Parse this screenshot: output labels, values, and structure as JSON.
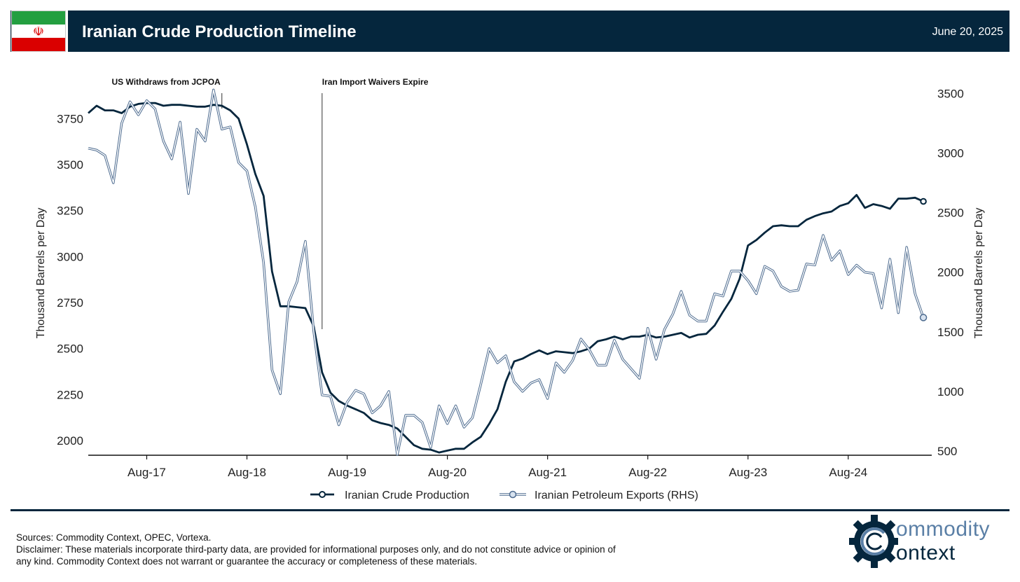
{
  "header": {
    "title": "Iranian Crude Production Timeline",
    "date": "June 20, 2025"
  },
  "flag": {
    "emblem": "☫",
    "icon": "iran-flag-icon"
  },
  "footer": {
    "sources": "Sources: Commodity Context, OPEC, Vortexa.",
    "disclaimer": "Disclaimer: These materials incorporate third-party data, are provided for informational purposes only, and do not constitute advice or opinion of any kind. Commodity Context does not warrant or guarantee the accuracy or completeness of these materials."
  },
  "logo": {
    "line1": "ommodity",
    "line2": "ontext",
    "icon": "gear-icon"
  },
  "colors": {
    "navy": "#05263d",
    "light_blue": "#8aa6c9"
  },
  "chart_data": {
    "type": "line",
    "title": "",
    "ylabel": "Thousand Barrels per Day",
    "y2label": "Thousand Barrels per Day",
    "ylim": [
      1920,
      3900
    ],
    "y2lim": [
      465,
      3520
    ],
    "yticks": [
      2000,
      2250,
      2500,
      2750,
      3000,
      3250,
      3500,
      3750
    ],
    "y2ticks": [
      500,
      1000,
      1500,
      2000,
      2500,
      3000,
      3500
    ],
    "xlim": [
      "2017-01",
      "2025-06"
    ],
    "xticks": [
      {
        "label": "Aug-17",
        "month": "2017-08"
      },
      {
        "label": "Aug-18",
        "month": "2018-08"
      },
      {
        "label": "Aug-19",
        "month": "2019-08"
      },
      {
        "label": "Aug-20",
        "month": "2020-08"
      },
      {
        "label": "Aug-21",
        "month": "2021-08"
      },
      {
        "label": "Aug-22",
        "month": "2022-08"
      },
      {
        "label": "Aug-23",
        "month": "2023-08"
      },
      {
        "label": "Aug-24",
        "month": "2024-08"
      }
    ],
    "legend_position": "bottom",
    "grid": false,
    "annotations": [
      {
        "label": "US Withdraws from JCPOA",
        "month": "2018-05"
      },
      {
        "label": "Iran Import Waivers Expire",
        "month": "2019-05"
      }
    ],
    "series": [
      {
        "name": "Iranian Crude Production",
        "axis": "left",
        "color": "#05263d",
        "start": "2017-01",
        "values": [
          3780,
          3820,
          3795,
          3795,
          3780,
          3815,
          3830,
          3835,
          3835,
          3820,
          3825,
          3825,
          3820,
          3815,
          3815,
          3825,
          3820,
          3795,
          3750,
          3610,
          3450,
          3330,
          2920,
          2730,
          2730,
          2725,
          2720,
          2620,
          2370,
          2260,
          2215,
          2190,
          2170,
          2150,
          2110,
          2095,
          2085,
          2065,
          2020,
          1975,
          1955,
          1950,
          1935,
          1945,
          1955,
          1955,
          1990,
          2020,
          2090,
          2170,
          2320,
          2430,
          2445,
          2470,
          2490,
          2470,
          2485,
          2480,
          2475,
          2485,
          2500,
          2540,
          2550,
          2565,
          2550,
          2565,
          2565,
          2575,
          2560,
          2565,
          2575,
          2585,
          2560,
          2575,
          2580,
          2625,
          2700,
          2770,
          2880,
          3060,
          3090,
          3130,
          3165,
          3170,
          3165,
          3165,
          3200,
          3220,
          3235,
          3245,
          3275,
          3290,
          3335,
          3265,
          3285,
          3275,
          3260,
          3315,
          3315,
          3320,
          3300
        ]
      },
      {
        "name": "Iranian Petroleum Exports (RHS)",
        "axis": "right",
        "color": "#8aa6c9",
        "start": "2017-01",
        "values": [
          3040,
          3025,
          2980,
          2750,
          3250,
          3430,
          3320,
          3440,
          3370,
          3100,
          2950,
          3260,
          2660,
          3200,
          3100,
          3530,
          3200,
          3220,
          2920,
          2850,
          2550,
          2080,
          1180,
          980,
          1750,
          1920,
          2260,
          1500,
          970,
          960,
          720,
          910,
          1010,
          980,
          820,
          880,
          1000,
          470,
          800,
          800,
          740,
          530,
          880,
          730,
          880,
          700,
          780,
          1060,
          1360,
          1240,
          1300,
          1080,
          1000,
          1070,
          1100,
          940,
          1240,
          1160,
          1260,
          1440,
          1350,
          1220,
          1220,
          1430,
          1270,
          1190,
          1110,
          1530,
          1270,
          1520,
          1650,
          1840,
          1640,
          1590,
          1590,
          1820,
          1800,
          2010,
          2010,
          1930,
          1820,
          2050,
          2010,
          1880,
          1840,
          1850,
          2070,
          2060,
          2310,
          2100,
          2180,
          1980,
          2060,
          2000,
          1990,
          1700,
          2110,
          1660,
          2210,
          1820,
          1620
        ]
      }
    ]
  }
}
